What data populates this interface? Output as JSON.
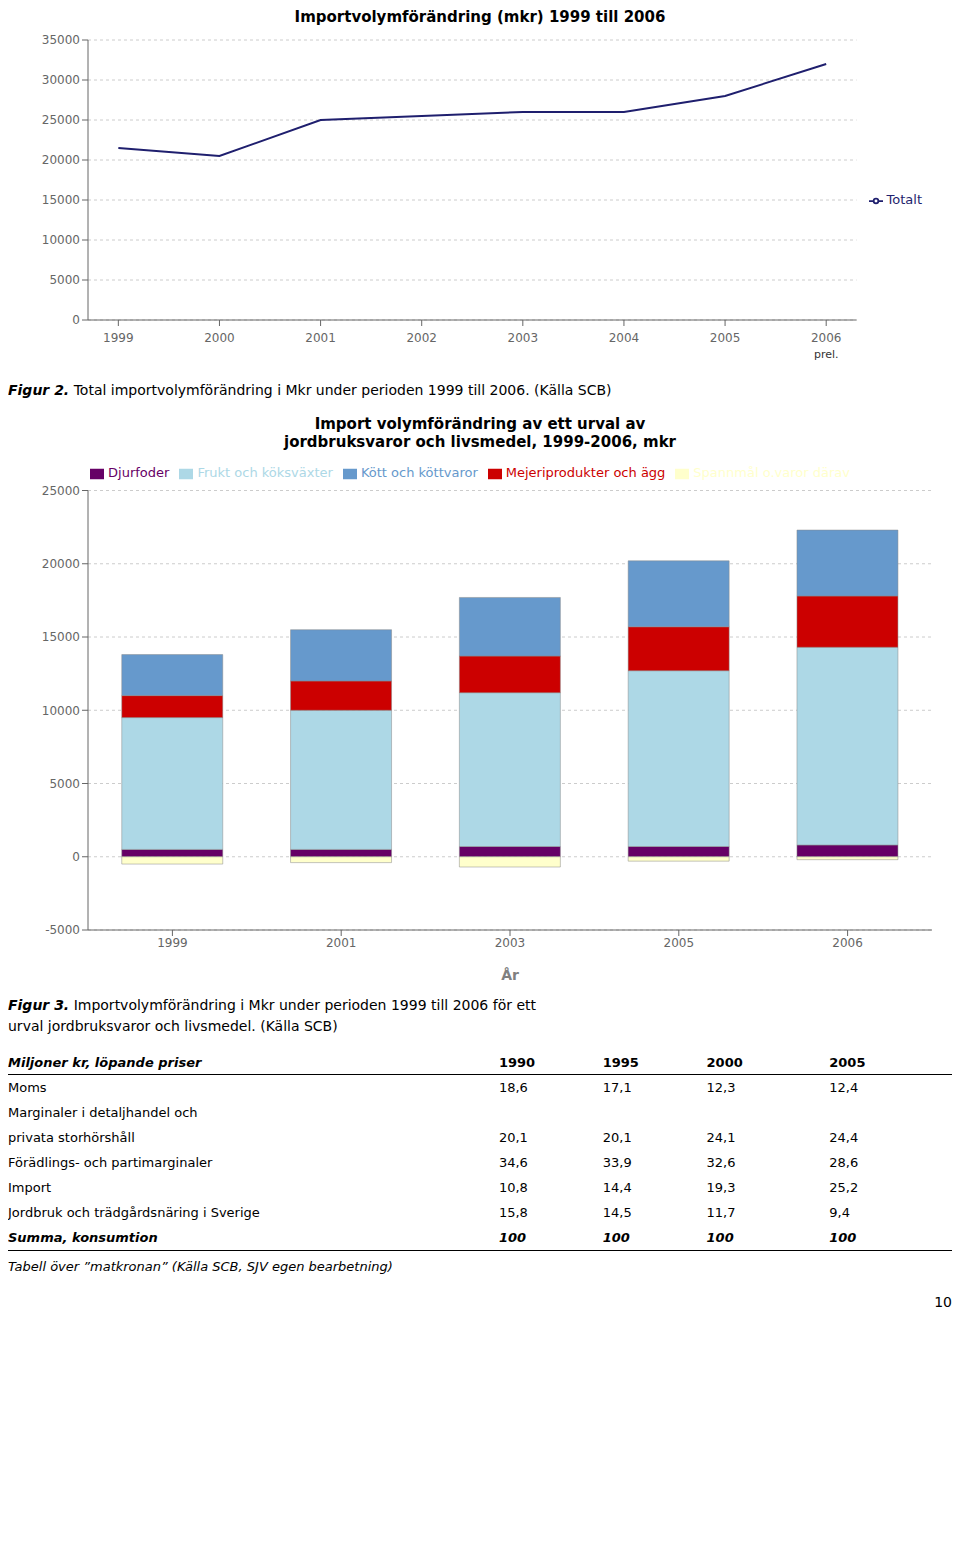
{
  "chart_data": [
    {
      "type": "line",
      "title": "Importvolymförändring (mkr) 1999 till 2006",
      "x": [
        1999,
        2000,
        2001,
        2002,
        2003,
        2004,
        2005,
        2006
      ],
      "series": [
        {
          "name": "Totalt",
          "color": "#1f1f6e",
          "values": [
            21500,
            20500,
            25000,
            25500,
            26000,
            26000,
            28000,
            32000
          ]
        }
      ],
      "xlim": [
        1998.7,
        2006.3
      ],
      "xticks": [
        1999,
        2000,
        2001,
        2002,
        2003,
        2004,
        2005,
        2006
      ],
      "ylim": [
        0,
        35000
      ],
      "yticks": [
        0,
        5000,
        10000,
        15000,
        20000,
        25000,
        30000,
        35000
      ],
      "grid": true,
      "legend": "right",
      "annotations": [
        {
          "text": "prel.",
          "x": 2006
        }
      ],
      "caption": [
        "Figur 2.",
        "Total importvolymförändring i Mkr under perioden 1999 till 2006. (Källa SCB)"
      ]
    },
    {
      "type": "bar",
      "stacked": true,
      "title": "Import volymförändring av ett urval av\njordbruksvaror och livsmedel, 1999-2006, mkr",
      "xlabel": "År",
      "categories": [
        "1999",
        "2001",
        "2003",
        "2005",
        "2006"
      ],
      "series": [
        {
          "name": "Djurfoder",
          "color": "#660066",
          "values": [
            500,
            500,
            700,
            700,
            800
          ]
        },
        {
          "name": "Frukt och köksväxter",
          "color": "#add8e6",
          "values": [
            9000,
            9500,
            10500,
            12000,
            13500
          ]
        },
        {
          "name": "Spannmål o.varor därav",
          "color": "#ffffcc",
          "values": [
            -500,
            -400,
            -700,
            -300,
            -200
          ]
        },
        {
          "name": "Mejeriprodukter och ägg",
          "color": "#cc0000",
          "values": [
            1500,
            2000,
            2500,
            3000,
            3500
          ]
        },
        {
          "name": "Kött och köttvaror",
          "color": "#6699cc",
          "values": [
            2800,
            3500,
            4000,
            4500,
            4500
          ]
        }
      ],
      "ylim": [
        -5000,
        25000
      ],
      "yticks": [
        -5000,
        0,
        5000,
        10000,
        15000,
        20000,
        25000
      ],
      "grid": true,
      "legend": "top",
      "caption": [
        "Figur 3.",
        "Importvolymförändring i Mkr under perioden 1999 till 2006 för ett",
        "urval jordbruksvaror och livsmedel. (Källa SCB)"
      ]
    },
    {
      "type": "table",
      "columns": [
        "Miljoner kr, löpande priser",
        "1990",
        "1995",
        "2000",
        "2005"
      ],
      "rows": [
        [
          "Moms",
          "18,6",
          "17,1",
          "12,3",
          "12,4"
        ],
        [
          "Marginaler i detaljhandel och"
        ],
        [
          "privata storhörshåll",
          "20,1",
          "20,1",
          "24,1",
          "24,4"
        ],
        [
          "Förädlings- och partimarginaler",
          "34,6",
          "33,9",
          "32,6",
          "28,6"
        ],
        [
          "Import",
          "10,8",
          "14,4",
          "19,3",
          "25,2"
        ],
        [
          "Jordbruk och trädgårdsnäring i Sverige",
          "15,8",
          "14,5",
          "11,7",
          "9,4"
        ],
        [
          "Summa, konsumtion",
          "100",
          "100",
          "100",
          "100"
        ]
      ],
      "footer": "Tabell över ”matkronan” (Källa SCB, SJV egen bearbetning)",
      "annotations": [
        {
          "text": "10"
        }
      ]
    }
  ]
}
